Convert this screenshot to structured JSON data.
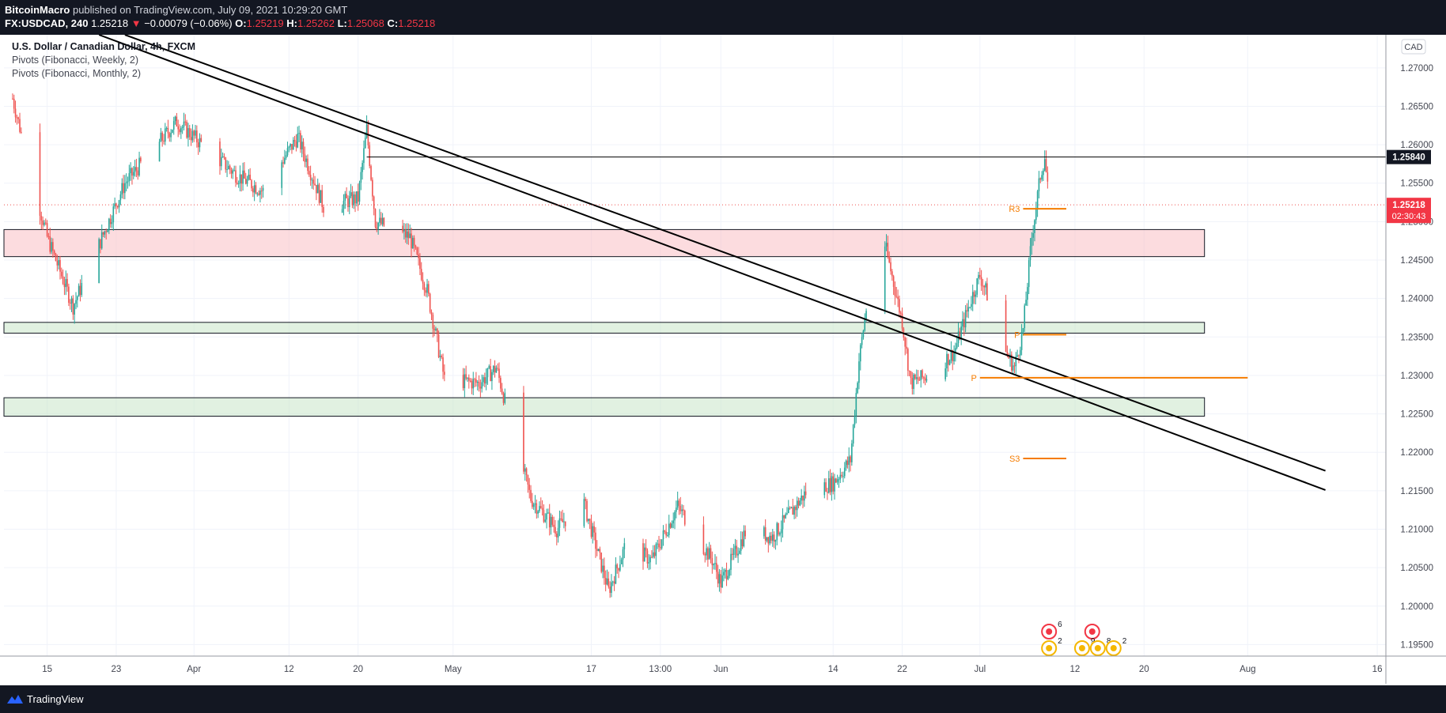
{
  "header": {
    "author": "BitcoinMacro",
    "published_text": "published on TradingView.com, July 09, 2021 10:29:20 GMT",
    "symbol": "FX:USDCAD, 240",
    "last": "1.25218",
    "change_arrow": "▼",
    "change": "−0.00079 (−0.06%)",
    "o_label": "O:",
    "o": "1.25219",
    "h_label": "H:",
    "h": "1.25262",
    "l_label": "L:",
    "l": "1.25068",
    "c_label": "C:",
    "c": "1.25218"
  },
  "legend": {
    "title": "U.S. Dollar / Canadian Dollar, 4h, FXCM",
    "ind1": "Pivots (Fibonacci, Weekly, 2)",
    "ind2": "Pivots (Fibonacci, Monthly, 2)"
  },
  "footer": {
    "brand": "TradingView",
    "logo_icon": "tradingview-logo-icon"
  },
  "chart_data": {
    "type": "candlestick",
    "currency_label": "CAD",
    "y_ticks": [
      "1.27000",
      "1.26500",
      "1.26000",
      "1.25500",
      "1.25000",
      "1.24500",
      "1.24000",
      "1.23500",
      "1.23000",
      "1.22500",
      "1.22000",
      "1.21500",
      "1.21000",
      "1.20500",
      "1.20000",
      "1.19500"
    ],
    "ylim": [
      1.1935,
      1.2743
    ],
    "x_ticks": [
      "15",
      "23",
      "Apr",
      "12",
      "20",
      "May",
      "17",
      "13:00",
      "Jun",
      "14",
      "22",
      "Jul",
      "12",
      "20",
      "Aug",
      "16"
    ],
    "price_labels": [
      {
        "value": 1.2584,
        "text": "1.25840"
      },
      {
        "value": 1.25218,
        "text": "1.25218",
        "countdown": "02:30:43"
      }
    ],
    "horizontal_lines": [
      {
        "value": 1.2584,
        "x_start": "Apr 21",
        "x_end": "chart edge"
      },
      {
        "value": 1.25218,
        "style": "dotted",
        "label": "last price"
      }
    ],
    "trendlines": [
      {
        "from": {
          "date": "Mar 24",
          "value": 1.2743
        },
        "to": {
          "date": "Aug 10",
          "value": 1.2176
        }
      },
      {
        "from": {
          "date": "Mar 21",
          "value": 1.2743
        },
        "to": {
          "date": "Aug 10",
          "value": 1.2151
        }
      }
    ],
    "zones": [
      {
        "type": "resistance",
        "color": "#f9c0c5",
        "y1": 1.24545,
        "y2": 1.24897
      },
      {
        "type": "support",
        "color": "#c8e6c9",
        "y1": 1.2355,
        "y2": 1.2369
      },
      {
        "type": "support",
        "color": "#c8e6c9",
        "y1": 1.2247,
        "y2": 1.2271
      }
    ],
    "pivots": [
      {
        "label": "R3",
        "value": 1.25167,
        "period": "weekly"
      },
      {
        "label": "P",
        "value": 1.2353,
        "period": "weekly"
      },
      {
        "label": "P",
        "value": 1.2297,
        "period": "monthly"
      },
      {
        "label": "S3",
        "value": 1.2192,
        "period": "weekly"
      }
    ],
    "anchors": [
      {
        "date": "Mar 11",
        "value": 1.266
      },
      {
        "date": "Mar 15",
        "value": 1.248
      },
      {
        "date": "Mar 18",
        "value": 1.239
      },
      {
        "date": "Mar 24",
        "value": 1.255
      },
      {
        "date": "Mar 30",
        "value": 1.263
      },
      {
        "date": "Apr 6",
        "value": 1.256
      },
      {
        "date": "Apr 9",
        "value": 1.254
      },
      {
        "date": "Apr 13",
        "value": 1.261
      },
      {
        "date": "Apr 16",
        "value": 1.252
      },
      {
        "date": "Apr 20",
        "value": 1.253
      },
      {
        "date": "Apr 21",
        "value": 1.262
      },
      {
        "date": "Apr 22",
        "value": 1.25
      },
      {
        "date": "Apr 26",
        "value": 1.248
      },
      {
        "date": "Apr 28",
        "value": 1.241
      },
      {
        "date": "Apr 30",
        "value": 1.2295
      },
      {
        "date": "May 4",
        "value": 1.229
      },
      {
        "date": "May 6",
        "value": 1.231
      },
      {
        "date": "May 10",
        "value": 1.214
      },
      {
        "date": "May 13",
        "value": 1.21
      },
      {
        "date": "May 16",
        "value": 1.214
      },
      {
        "date": "May 18",
        "value": 1.206
      },
      {
        "date": "May 19",
        "value": 1.202
      },
      {
        "date": "May 21",
        "value": 1.208
      },
      {
        "date": "May 24",
        "value": 1.206
      },
      {
        "date": "May 27",
        "value": 1.213
      },
      {
        "date": "May 31",
        "value": 1.206
      },
      {
        "date": "Jun 1",
        "value": 1.203
      },
      {
        "date": "Jun 4",
        "value": 1.21
      },
      {
        "date": "Jun 7",
        "value": 1.209
      },
      {
        "date": "Jun 9",
        "value": 1.212
      },
      {
        "date": "Jun 11",
        "value": 1.215
      },
      {
        "date": "Jun 14",
        "value": 1.216
      },
      {
        "date": "Jun 16",
        "value": 1.219
      },
      {
        "date": "Jun 17",
        "value": 1.232
      },
      {
        "date": "Jun 18",
        "value": 1.24
      },
      {
        "date": "Jun 20",
        "value": 1.247
      },
      {
        "date": "Jun 21",
        "value": 1.242
      },
      {
        "date": "Jun 22",
        "value": 1.237
      },
      {
        "date": "Jun 23",
        "value": 1.229
      },
      {
        "date": "Jun 25",
        "value": 1.23
      },
      {
        "date": "Jun 28",
        "value": 1.233
      },
      {
        "date": "Jun 30",
        "value": 1.24
      },
      {
        "date": "Jul 1",
        "value": 1.243
      },
      {
        "date": "Jul 2",
        "value": 1.24
      },
      {
        "date": "Jul 3",
        "value": 1.244
      },
      {
        "date": "Jul 4",
        "value": 1.233
      },
      {
        "date": "Jul 5",
        "value": 1.231
      },
      {
        "date": "Jul 6",
        "value": 1.236
      },
      {
        "date": "Jul 7",
        "value": 1.248
      },
      {
        "date": "Jul 8",
        "value": 1.256
      },
      {
        "date": "Jul 8.5",
        "value": 1.2584
      },
      {
        "date": "Jul 9",
        "value": 1.2522
      }
    ],
    "events": [
      {
        "flag": "CA",
        "count": "6",
        "date": "Jul 9"
      },
      {
        "flag": "CA",
        "date": "Jul 14"
      },
      {
        "flag": "US",
        "count": "2",
        "date": "Jul 9"
      },
      {
        "flag": "US",
        "count": "9",
        "date": "Jul 12"
      },
      {
        "flag": "US",
        "count": "8",
        "date": "Jul 13"
      },
      {
        "flag": "US",
        "count": "2",
        "date": "Jul 14"
      }
    ]
  }
}
